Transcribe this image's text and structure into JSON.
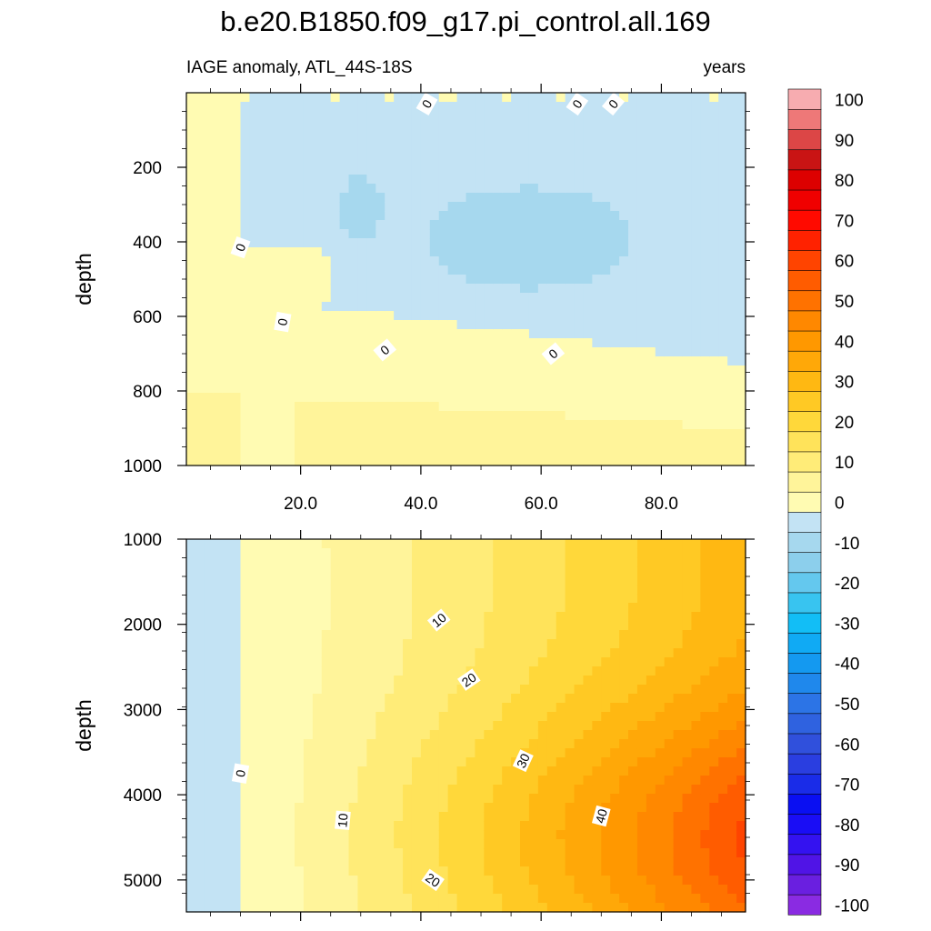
{
  "chart_data": {
    "type": "contour",
    "title": "b.e20.B1850.f09_g17.pi_control.all.169",
    "subtitle_left": "IAGE anomaly, ATL_44S-18S",
    "subtitle_right": "years",
    "x_range": [
      1,
      94
    ],
    "x_ticks": [
      "20.0",
      "40.0",
      "60.0",
      "80.0"
    ],
    "colorbar": {
      "levels": [
        -100,
        -95,
        -90,
        -85,
        -80,
        -75,
        -70,
        -65,
        -60,
        -55,
        -50,
        -45,
        -40,
        -35,
        -30,
        -25,
        -20,
        -15,
        -10,
        -5,
        0,
        5,
        10,
        15,
        20,
        25,
        30,
        35,
        40,
        45,
        50,
        55,
        60,
        65,
        70,
        75,
        80,
        85,
        90,
        95,
        100
      ],
      "labels": [
        "100",
        "90",
        "80",
        "70",
        "60",
        "50",
        "40",
        "30",
        "20",
        "10",
        "0",
        "-10",
        "-20",
        "-30",
        "-40",
        "-50",
        "-60",
        "-70",
        "-80",
        "-90",
        "-100"
      ],
      "colors": [
        "#8a2be2",
        "#6a1fe0",
        "#5014e6",
        "#3412f0",
        "#1a0df5",
        "#0a0ff2",
        "#1a2ce8",
        "#2a3ee0",
        "#3050dc",
        "#2f62e0",
        "#2c74e6",
        "#1f88ec",
        "#1499f0",
        "#10aaf4",
        "#12bef6",
        "#38c4f0",
        "#64c8ee",
        "#8ccfec",
        "#a6d8ee",
        "#c3e3f4",
        "#fffbb2",
        "#fff49a",
        "#ffec78",
        "#ffe35a",
        "#ffd83a",
        "#ffc924",
        "#ffb812",
        "#ffa808",
        "#ff9800",
        "#ff8800",
        "#ff7200",
        "#ff5c00",
        "#ff4400",
        "#ff2200",
        "#ff0a00",
        "#f00000",
        "#dd0000",
        "#c91414",
        "#dc4646",
        "#ee7878",
        "#f7acb0"
      ]
    },
    "panels": [
      {
        "ylabel": "depth",
        "y_range": [
          0,
          1000
        ],
        "y_ticks": [
          "200",
          "400",
          "600",
          "800",
          "1000"
        ],
        "y_tick_values": [
          200,
          400,
          600,
          800,
          1000
        ],
        "contour_labels": [
          "0",
          "0",
          "0",
          "0",
          "0",
          "0",
          "0"
        ],
        "value_range": [
          -10,
          15
        ]
      },
      {
        "ylabel": "depth",
        "y_range": [
          1000,
          5375
        ],
        "y_ticks": [
          "1000",
          "2000",
          "3000",
          "4000",
          "5000"
        ],
        "y_tick_values": [
          1000,
          2000,
          3000,
          4000,
          5000
        ],
        "contour_labels": [
          "10",
          "20",
          "30",
          "40",
          "10",
          "20",
          "0"
        ],
        "value_range": [
          -5,
          60
        ]
      }
    ]
  }
}
